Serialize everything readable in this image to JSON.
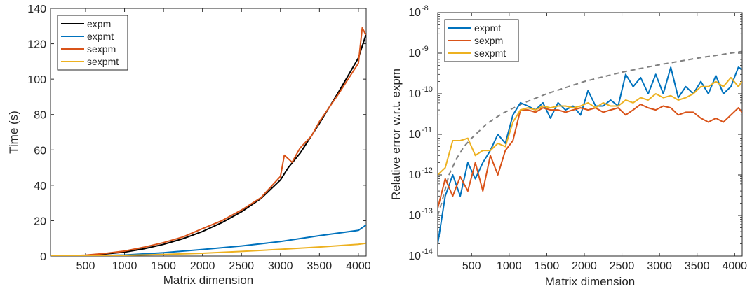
{
  "chart_data": [
    {
      "type": "line",
      "title": "",
      "xlabel": "Matrix dimension",
      "ylabel": "Time (s)",
      "xlim": [
        50,
        4100
      ],
      "ylim": [
        0,
        140
      ],
      "grid": false,
      "legend_position": "top-left",
      "x_ticks": [
        500,
        1000,
        1500,
        2000,
        2500,
        3000,
        3500,
        4000
      ],
      "y_ticks": [
        0,
        20,
        40,
        60,
        80,
        100,
        120,
        140
      ],
      "x_tick_labels": [
        "500",
        "1000",
        "1500",
        "2000",
        "2500",
        "3000",
        "3500",
        "4000"
      ],
      "y_tick_labels": [
        "0",
        "20",
        "40",
        "60",
        "80",
        "100",
        "120",
        "140"
      ],
      "series": [
        {
          "name": "expm",
          "color": "#000000",
          "x": [
            50,
            250,
            500,
            750,
            1000,
            1250,
            1500,
            1750,
            2000,
            2250,
            2500,
            2750,
            3000,
            3100,
            3250,
            3500,
            3750,
            4000,
            4096
          ],
          "y": [
            0,
            0.1,
            0.4,
            1.2,
            2.2,
            4.1,
            6.6,
            9.8,
            13.9,
            18.9,
            25,
            32.5,
            43,
            50,
            58,
            75,
            93,
            112,
            125
          ]
        },
        {
          "name": "expmt",
          "color": "#0072bd",
          "x": [
            50,
            500,
            1000,
            1500,
            2000,
            2500,
            3000,
            3500,
            4000,
            4096
          ],
          "y": [
            0,
            0.1,
            0.6,
            1.9,
            3.7,
            5.7,
            8.2,
            11.5,
            14.5,
            17.5
          ]
        },
        {
          "name": "sexpm",
          "color": "#d95319",
          "x": [
            50,
            250,
            500,
            750,
            1000,
            1250,
            1500,
            1750,
            2000,
            2250,
            2500,
            2750,
            3000,
            3050,
            3150,
            3250,
            3400,
            3500,
            3750,
            4000,
            4050,
            4096
          ],
          "y": [
            0,
            0.1,
            0.5,
            1.5,
            2.8,
            5,
            7.6,
            10.8,
            15.5,
            20,
            26,
            33,
            45,
            57,
            53,
            61,
            68,
            76,
            92,
            109,
            129,
            125
          ]
        },
        {
          "name": "sexpmt",
          "color": "#edb120",
          "x": [
            50,
            500,
            1000,
            1500,
            2000,
            2500,
            3000,
            3500,
            4000,
            4096
          ],
          "y": [
            0,
            0.1,
            0.4,
            0.9,
            1.6,
            2.6,
            3.8,
            5.1,
            6.6,
            7.2
          ]
        }
      ]
    },
    {
      "type": "line",
      "title": "",
      "xlabel": "Matrix dimension",
      "ylabel": "Relative error w.r.t. expm",
      "xlim": [
        50,
        4100
      ],
      "ylim": [
        1e-14,
        1e-08
      ],
      "yscale": "log",
      "grid": false,
      "legend_position": "top-left",
      "x_ticks": [
        500,
        1000,
        1500,
        2000,
        2500,
        3000,
        3500,
        4000
      ],
      "x_tick_labels": [
        "500",
        "1000",
        "1500",
        "2000",
        "2500",
        "3000",
        "3500",
        "4000"
      ],
      "y_ticks": [
        1e-14,
        1e-13,
        1e-12,
        1e-11,
        1e-10,
        1e-09,
        1e-08
      ],
      "y_tick_exponents": [
        "-14",
        "-13",
        "-12",
        "-11",
        "-10",
        "-9",
        "-8"
      ],
      "y_tick_base": "10",
      "series": [
        {
          "name": "expmt",
          "color": "#0072bd",
          "x": [
            50,
            150,
            250,
            350,
            450,
            550,
            650,
            750,
            850,
            950,
            1050,
            1150,
            1250,
            1350,
            1450,
            1550,
            1650,
            1750,
            1850,
            1950,
            2050,
            2150,
            2250,
            2350,
            2450,
            2550,
            2650,
            2750,
            2850,
            2950,
            3050,
            3150,
            3250,
            3350,
            3450,
            3550,
            3650,
            3750,
            3850,
            3950,
            4050,
            4096
          ],
          "y": [
            2e-14,
            3e-13,
            1e-12,
            3e-13,
            2e-12,
            8e-13,
            2e-12,
            4e-12,
            1e-11,
            6e-12,
            3e-11,
            6e-11,
            5e-11,
            4e-11,
            6e-11,
            2.5e-11,
            6e-11,
            4e-11,
            5e-11,
            3e-11,
            1.2e-10,
            5e-11,
            5e-11,
            7e-11,
            5e-11,
            3e-10,
            1.5e-10,
            2.5e-10,
            1e-10,
            3e-10,
            1e-10,
            4.5e-10,
            8e-11,
            1.5e-10,
            1e-10,
            2e-10,
            1e-10,
            2.8e-10,
            1e-10,
            1.5e-10,
            4.5e-10,
            4e-10
          ]
        },
        {
          "name": "sexpm",
          "color": "#d95319",
          "x": [
            50,
            150,
            250,
            350,
            450,
            550,
            650,
            750,
            850,
            950,
            1050,
            1150,
            1250,
            1350,
            1450,
            1550,
            1650,
            1750,
            1850,
            1950,
            2050,
            2150,
            2250,
            2350,
            2450,
            2550,
            2650,
            2750,
            2850,
            2950,
            3050,
            3150,
            3250,
            3350,
            3450,
            3550,
            3650,
            3750,
            3850,
            3950,
            4050,
            4096
          ],
          "y": [
            1.5e-13,
            8e-13,
            3e-13,
            9e-13,
            4e-13,
            2e-12,
            4e-13,
            3e-12,
            1e-12,
            4e-12,
            7e-12,
            4e-11,
            4e-11,
            3.5e-11,
            4.5e-11,
            4e-11,
            4e-11,
            3.5e-11,
            4e-11,
            4.5e-11,
            4e-11,
            4.5e-11,
            3.5e-11,
            4e-11,
            4.5e-11,
            3e-11,
            4e-11,
            5.5e-11,
            4.5e-11,
            4e-11,
            5e-11,
            4.5e-11,
            3e-11,
            3.5e-11,
            3.5e-11,
            2.5e-11,
            2e-11,
            2.5e-11,
            2e-11,
            3e-11,
            4.5e-11,
            3.5e-11
          ]
        },
        {
          "name": "sexpmt",
          "color": "#edb120",
          "x": [
            50,
            150,
            250,
            350,
            450,
            550,
            650,
            750,
            850,
            950,
            1050,
            1150,
            1250,
            1350,
            1450,
            1550,
            1650,
            1750,
            1850,
            1950,
            2050,
            2150,
            2250,
            2350,
            2450,
            2550,
            2650,
            2750,
            2850,
            2950,
            3050,
            3150,
            3250,
            3350,
            3450,
            3550,
            3650,
            3750,
            3850,
            3950,
            4050,
            4096
          ],
          "y": [
            1e-12,
            1.5e-12,
            7e-12,
            7e-12,
            8e-12,
            3e-12,
            4e-12,
            4e-12,
            6e-12,
            5e-12,
            2e-11,
            4e-11,
            4.5e-11,
            4e-11,
            5e-11,
            4.5e-11,
            5e-11,
            5e-11,
            4.5e-11,
            5e-11,
            6e-11,
            4.5e-11,
            6e-11,
            5e-11,
            5e-11,
            7e-11,
            6e-11,
            8e-11,
            7e-11,
            1e-10,
            8e-11,
            9e-11,
            7e-11,
            8e-11,
            1e-10,
            1.5e-10,
            1.5e-10,
            2e-10,
            1.5e-10,
            2.5e-10,
            1.5e-10,
            2e-10
          ]
        },
        {
          "name": "",
          "color": "#808080",
          "dashed": true,
          "x": [
            50,
            100,
            200,
            300,
            400,
            500,
            700,
            900,
            1200,
            1500,
            2000,
            2500,
            3000,
            3500,
            4096
          ],
          "y": [
            1e-13,
            2e-13,
            1e-12,
            2.5e-12,
            5e-12,
            8e-12,
            1.8e-11,
            3.2e-11,
            6e-11,
            1e-10,
            2e-10,
            3.4e-10,
            5.2e-10,
            7.5e-10,
            1.1e-09
          ]
        }
      ]
    }
  ]
}
